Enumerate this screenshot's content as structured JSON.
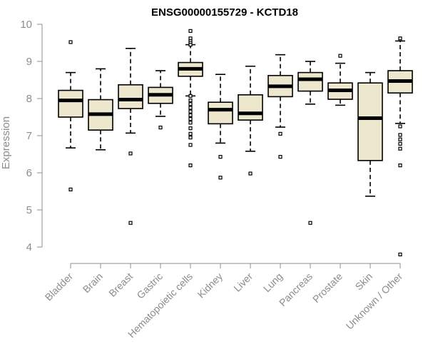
{
  "chart_data": {
    "type": "boxplot",
    "title": "ENSG00000155729 - KCTD18",
    "ylabel": "Expression",
    "xlabel": "",
    "ylim": [
      3.8,
      10
    ],
    "yticks": [
      4,
      5,
      6,
      7,
      8,
      9,
      10
    ],
    "colors": {
      "box_fill": "#ede7cd",
      "stroke": "#000000",
      "axis": "#8c8c8c"
    },
    "categories": [
      "Bladder",
      "Brain",
      "Breast",
      "Gastric",
      "Hematopoietic cells",
      "Kidney",
      "Liver",
      "Lung",
      "Pancreas",
      "Prostate",
      "Skin",
      "Unknown / Other"
    ],
    "boxes": [
      {
        "whisker_low": 6.67,
        "q1": 7.5,
        "median": 7.95,
        "q3": 8.22,
        "whisker_high": 8.7,
        "outliers": [
          9.52,
          5.55
        ]
      },
      {
        "whisker_low": 6.62,
        "q1": 7.15,
        "median": 7.58,
        "q3": 7.97,
        "whisker_high": 8.8,
        "outliers": []
      },
      {
        "whisker_low": 7.07,
        "q1": 7.73,
        "median": 7.97,
        "q3": 8.37,
        "whisker_high": 9.35,
        "outliers": [
          6.52,
          4.65
        ]
      },
      {
        "whisker_low": 7.52,
        "q1": 7.87,
        "median": 8.1,
        "q3": 8.3,
        "whisker_high": 8.75,
        "outliers": [
          7.22
        ]
      },
      {
        "whisker_low": 8.07,
        "q1": 8.6,
        "median": 8.8,
        "q3": 8.97,
        "whisker_high": 9.45,
        "outliers": [
          9.82,
          9.62,
          9.55,
          9.5,
          9.45,
          8.07,
          7.95,
          7.85,
          7.75,
          7.65,
          7.55,
          7.45,
          7.35,
          7.2,
          7.05,
          6.95,
          6.75,
          6.2
        ]
      },
      {
        "whisker_low": 6.8,
        "q1": 7.32,
        "median": 7.7,
        "q3": 7.9,
        "whisker_high": 8.65,
        "outliers": [
          6.43,
          5.87
        ]
      },
      {
        "whisker_low": 6.58,
        "q1": 7.42,
        "median": 7.6,
        "q3": 8.1,
        "whisker_high": 8.87,
        "outliers": [
          5.98
        ]
      },
      {
        "whisker_low": 7.23,
        "q1": 8.05,
        "median": 8.33,
        "q3": 8.62,
        "whisker_high": 9.18,
        "outliers": [
          7.05,
          6.43
        ]
      },
      {
        "whisker_low": 7.85,
        "q1": 8.2,
        "median": 8.52,
        "q3": 8.7,
        "whisker_high": 9.0,
        "outliers": [
          4.65
        ]
      },
      {
        "whisker_low": 7.82,
        "q1": 7.98,
        "median": 8.22,
        "q3": 8.42,
        "whisker_high": 8.95,
        "outliers": [
          9.15
        ]
      },
      {
        "whisker_low": 5.37,
        "q1": 6.33,
        "median": 7.47,
        "q3": 8.42,
        "whisker_high": 8.7,
        "outliers": []
      },
      {
        "whisker_low": 7.33,
        "q1": 8.15,
        "median": 8.47,
        "q3": 8.75,
        "whisker_high": 9.55,
        "outliers": [
          9.62,
          7.25,
          7.02,
          6.9,
          6.78,
          6.65,
          6.2,
          3.8
        ]
      }
    ]
  }
}
